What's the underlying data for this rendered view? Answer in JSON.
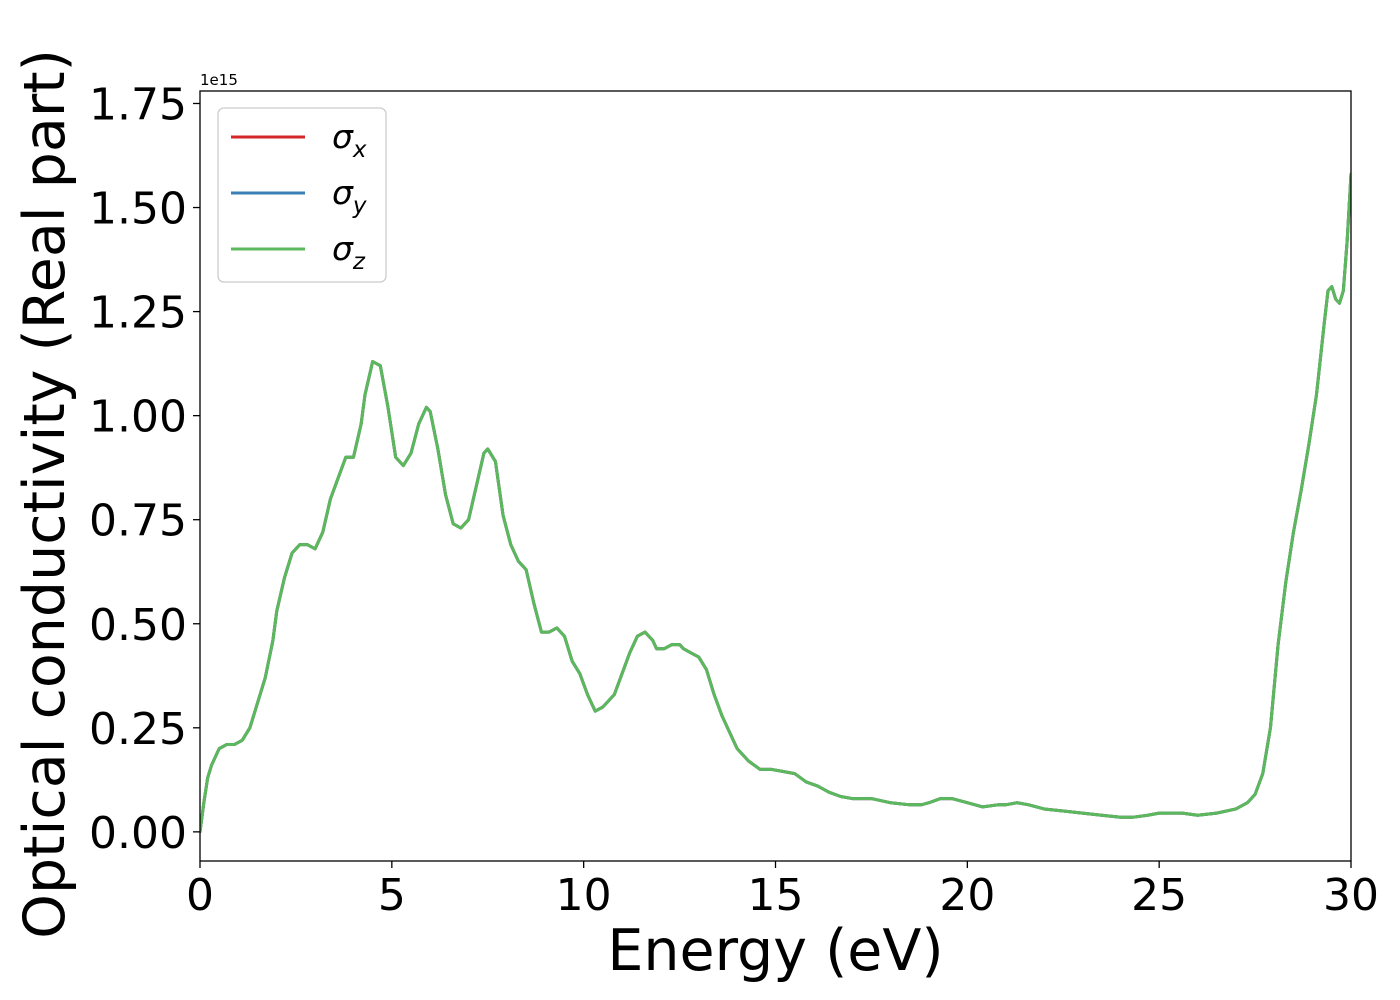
{
  "chart_data": {
    "type": "line",
    "title": "",
    "xlabel": "Energy (eV)",
    "ylabel": "Optical conductivity (Real part)",
    "y_offset_label": "1e15",
    "xlim": [
      0,
      30
    ],
    "ylim": [
      -0.07,
      1.78
    ],
    "y_scale_factor": 1000000000000000.0,
    "xticks": [
      0,
      5,
      10,
      15,
      20,
      25,
      30
    ],
    "xtick_labels": [
      "0",
      "5",
      "10",
      "15",
      "20",
      "25",
      "30"
    ],
    "yticks": [
      0.0,
      0.25,
      0.5,
      0.75,
      1.0,
      1.25,
      1.5,
      1.75
    ],
    "ytick_labels": [
      "0.00",
      "0.25",
      "0.50",
      "0.75",
      "1.00",
      "1.25",
      "1.50",
      "1.75"
    ],
    "grid": false,
    "legend_position": "top-left",
    "x": [
      0,
      0.1,
      0.2,
      0.3,
      0.5,
      0.7,
      0.9,
      1.1,
      1.3,
      1.5,
      1.7,
      1.9,
      2.0,
      2.2,
      2.4,
      2.6,
      2.8,
      3.0,
      3.2,
      3.4,
      3.6,
      3.8,
      4.0,
      4.2,
      4.3,
      4.5,
      4.7,
      4.9,
      5.1,
      5.3,
      5.5,
      5.7,
      5.9,
      6.0,
      6.2,
      6.4,
      6.6,
      6.8,
      7.0,
      7.2,
      7.4,
      7.5,
      7.7,
      7.9,
      8.1,
      8.3,
      8.5,
      8.7,
      8.9,
      9.1,
      9.3,
      9.5,
      9.7,
      9.9,
      10.1,
      10.3,
      10.5,
      10.6,
      10.8,
      11.0,
      11.2,
      11.4,
      11.6,
      11.8,
      11.9,
      12.1,
      12.3,
      12.5,
      12.6,
      12.8,
      13.0,
      13.2,
      13.4,
      13.6,
      13.8,
      14.0,
      14.3,
      14.6,
      14.9,
      15.2,
      15.5,
      15.8,
      16.1,
      16.4,
      16.7,
      17.0,
      17.5,
      18.0,
      18.5,
      18.8,
      19.0,
      19.3,
      19.6,
      20.0,
      20.4,
      20.8,
      21.0,
      21.3,
      21.6,
      22.0,
      22.5,
      23.0,
      23.5,
      24.0,
      24.3,
      24.7,
      25.0,
      25.3,
      25.6,
      26.0,
      26.5,
      27.0,
      27.3,
      27.5,
      27.7,
      27.9,
      28.1,
      28.3,
      28.5,
      28.7,
      28.9,
      29.1,
      29.3,
      29.4,
      29.5,
      29.6,
      29.7,
      29.8,
      29.9,
      30.0
    ],
    "series": [
      {
        "name": "σx",
        "base": "σ",
        "sub": "x",
        "color": "#d62728",
        "values": [
          0.0,
          0.07,
          0.13,
          0.16,
          0.2,
          0.21,
          0.21,
          0.22,
          0.25,
          0.31,
          0.37,
          0.46,
          0.53,
          0.61,
          0.67,
          0.69,
          0.69,
          0.68,
          0.72,
          0.8,
          0.85,
          0.9,
          0.9,
          0.98,
          1.05,
          1.13,
          1.12,
          1.02,
          0.9,
          0.88,
          0.91,
          0.98,
          1.02,
          1.01,
          0.92,
          0.81,
          0.74,
          0.73,
          0.75,
          0.83,
          0.91,
          0.92,
          0.89,
          0.76,
          0.69,
          0.65,
          0.63,
          0.55,
          0.48,
          0.48,
          0.49,
          0.47,
          0.41,
          0.38,
          0.33,
          0.29,
          0.3,
          0.31,
          0.33,
          0.38,
          0.43,
          0.47,
          0.48,
          0.46,
          0.44,
          0.44,
          0.45,
          0.45,
          0.44,
          0.43,
          0.42,
          0.39,
          0.33,
          0.28,
          0.24,
          0.2,
          0.17,
          0.15,
          0.15,
          0.145,
          0.14,
          0.12,
          0.11,
          0.095,
          0.085,
          0.08,
          0.08,
          0.07,
          0.065,
          0.065,
          0.07,
          0.08,
          0.08,
          0.07,
          0.06,
          0.065,
          0.065,
          0.07,
          0.065,
          0.055,
          0.05,
          0.045,
          0.04,
          0.035,
          0.035,
          0.04,
          0.045,
          0.045,
          0.045,
          0.04,
          0.045,
          0.055,
          0.07,
          0.09,
          0.14,
          0.25,
          0.45,
          0.6,
          0.72,
          0.82,
          0.93,
          1.05,
          1.22,
          1.3,
          1.31,
          1.28,
          1.27,
          1.3,
          1.42,
          1.58
        ]
      },
      {
        "name": "σy",
        "base": "σ",
        "sub": "y",
        "color": "#3a7fb5",
        "values": [
          0.0,
          0.07,
          0.13,
          0.16,
          0.2,
          0.21,
          0.21,
          0.22,
          0.25,
          0.31,
          0.37,
          0.46,
          0.53,
          0.61,
          0.67,
          0.69,
          0.69,
          0.68,
          0.72,
          0.8,
          0.85,
          0.9,
          0.9,
          0.98,
          1.05,
          1.13,
          1.12,
          1.02,
          0.9,
          0.88,
          0.91,
          0.98,
          1.02,
          1.01,
          0.92,
          0.81,
          0.74,
          0.73,
          0.75,
          0.83,
          0.91,
          0.92,
          0.89,
          0.76,
          0.69,
          0.65,
          0.63,
          0.55,
          0.48,
          0.48,
          0.49,
          0.47,
          0.41,
          0.38,
          0.33,
          0.29,
          0.3,
          0.31,
          0.33,
          0.38,
          0.43,
          0.47,
          0.48,
          0.46,
          0.44,
          0.44,
          0.45,
          0.45,
          0.44,
          0.43,
          0.42,
          0.39,
          0.33,
          0.28,
          0.24,
          0.2,
          0.17,
          0.15,
          0.15,
          0.145,
          0.14,
          0.12,
          0.11,
          0.095,
          0.085,
          0.08,
          0.08,
          0.07,
          0.065,
          0.065,
          0.07,
          0.08,
          0.08,
          0.07,
          0.06,
          0.065,
          0.065,
          0.07,
          0.065,
          0.055,
          0.05,
          0.045,
          0.04,
          0.035,
          0.035,
          0.04,
          0.045,
          0.045,
          0.045,
          0.04,
          0.045,
          0.055,
          0.07,
          0.09,
          0.14,
          0.25,
          0.45,
          0.6,
          0.72,
          0.82,
          0.93,
          1.05,
          1.22,
          1.3,
          1.31,
          1.28,
          1.27,
          1.3,
          1.42,
          1.58
        ]
      },
      {
        "name": "σz",
        "base": "σ",
        "sub": "z",
        "color": "#5cb85c",
        "values": [
          0.0,
          0.07,
          0.13,
          0.16,
          0.2,
          0.21,
          0.21,
          0.22,
          0.25,
          0.31,
          0.37,
          0.46,
          0.53,
          0.61,
          0.67,
          0.69,
          0.69,
          0.68,
          0.72,
          0.8,
          0.85,
          0.9,
          0.9,
          0.98,
          1.05,
          1.13,
          1.12,
          1.02,
          0.9,
          0.88,
          0.91,
          0.98,
          1.02,
          1.01,
          0.92,
          0.81,
          0.74,
          0.73,
          0.75,
          0.83,
          0.91,
          0.92,
          0.89,
          0.76,
          0.69,
          0.65,
          0.63,
          0.55,
          0.48,
          0.48,
          0.49,
          0.47,
          0.41,
          0.38,
          0.33,
          0.29,
          0.3,
          0.31,
          0.33,
          0.38,
          0.43,
          0.47,
          0.48,
          0.46,
          0.44,
          0.44,
          0.45,
          0.45,
          0.44,
          0.43,
          0.42,
          0.39,
          0.33,
          0.28,
          0.24,
          0.2,
          0.17,
          0.15,
          0.15,
          0.145,
          0.14,
          0.12,
          0.11,
          0.095,
          0.085,
          0.08,
          0.08,
          0.07,
          0.065,
          0.065,
          0.07,
          0.08,
          0.08,
          0.07,
          0.06,
          0.065,
          0.065,
          0.07,
          0.065,
          0.055,
          0.05,
          0.045,
          0.04,
          0.035,
          0.035,
          0.04,
          0.045,
          0.045,
          0.045,
          0.04,
          0.045,
          0.055,
          0.07,
          0.09,
          0.14,
          0.25,
          0.45,
          0.6,
          0.72,
          0.82,
          0.93,
          1.05,
          1.22,
          1.3,
          1.31,
          1.28,
          1.27,
          1.3,
          1.42,
          1.58
        ]
      }
    ]
  }
}
